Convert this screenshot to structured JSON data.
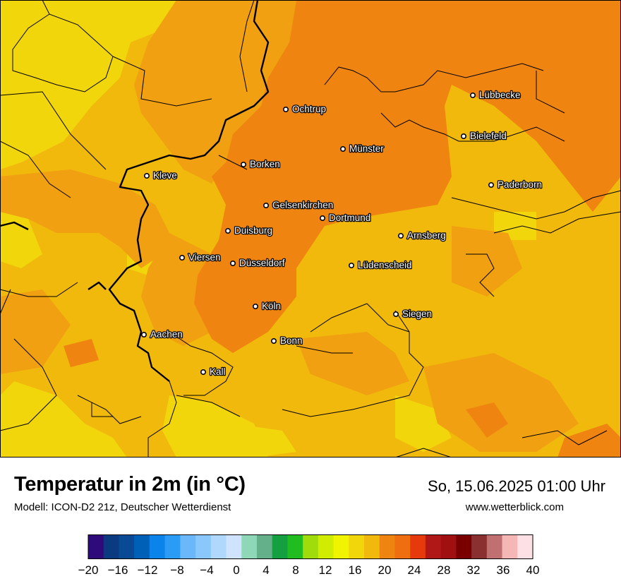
{
  "map": {
    "cities": [
      {
        "name": "Lübbecke"
      },
      {
        "name": "Ochtrup"
      },
      {
        "name": "Bielefeld"
      },
      {
        "name": "Münster"
      },
      {
        "name": "Kleve"
      },
      {
        "name": "Borken"
      },
      {
        "name": "Paderborn"
      },
      {
        "name": "Gelsenkirchen"
      },
      {
        "name": "Dortmund"
      },
      {
        "name": "Duisburg"
      },
      {
        "name": "Arnsberg"
      },
      {
        "name": "Viersen"
      },
      {
        "name": "Düsseldorf"
      },
      {
        "name": "Lüdenscheid"
      },
      {
        "name": "Köln"
      },
      {
        "name": "Siegen"
      },
      {
        "name": "Aachen"
      },
      {
        "name": "Bonn"
      },
      {
        "name": "Kall"
      }
    ],
    "colors": {
      "t16_18": "#f2d60c",
      "t18_20": "#f0b90c",
      "t20_22": "#f0a010",
      "t22_24": "#ef8510",
      "border": "#000000"
    }
  },
  "header": {
    "title": "Temperatur in 2m (in °C)",
    "model": "Modell: ICON-D2 21z, Deutscher Wetterdienst",
    "datetime": "So, 15.06.2025 01:00 Uhr",
    "website": "www.wetterblick.com"
  },
  "legend": {
    "unit": "°C",
    "min": -20,
    "max": 40,
    "step": 2,
    "tick_labels": [
      "−20",
      "−16",
      "−12",
      "−8",
      "−4",
      "0",
      "4",
      "8",
      "12",
      "16",
      "20",
      "24",
      "28",
      "32",
      "36",
      "40"
    ],
    "colors": [
      "#2e0a7a",
      "#0a3a80",
      "#0a4a95",
      "#0060b8",
      "#0a84e8",
      "#2a9cf5",
      "#6ab8fa",
      "#8ac8fb",
      "#b0d8fc",
      "#cfe4fc",
      "#8ed8b8",
      "#64b08a",
      "#14a040",
      "#20bc20",
      "#a0dc0c",
      "#d0ec00",
      "#f0f400",
      "#f2d60c",
      "#f0b90c",
      "#ef8510",
      "#ef6e10",
      "#e63a0c",
      "#b01818",
      "#a01010",
      "#7a0000",
      "#8a3030",
      "#c07070",
      "#f5b6b6",
      "#fde0e6"
    ]
  }
}
